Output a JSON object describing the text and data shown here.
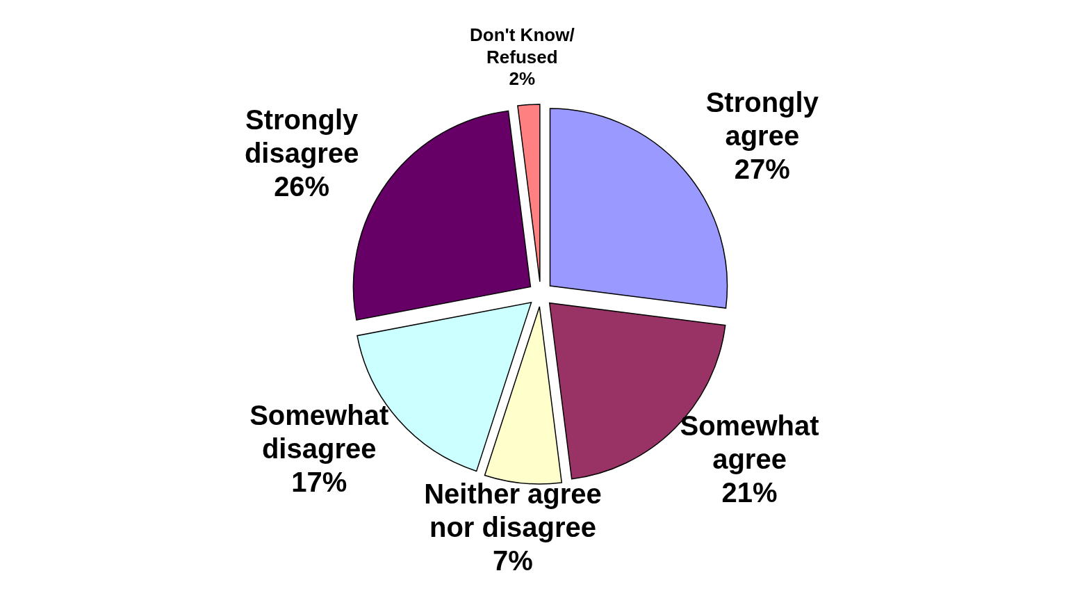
{
  "chart_data": {
    "type": "pie",
    "categories": [
      "Strongly agree",
      "Somewhat agree",
      "Neither agree nor disagree",
      "Somewhat disagree",
      "Strongly disagree",
      "Don't Know/Refused"
    ],
    "values": [
      27,
      21,
      7,
      17,
      26,
      2
    ],
    "colors": [
      "#9999ff",
      "#993366",
      "#ffffcc",
      "#ccffff",
      "#660066",
      "#ff8080"
    ],
    "value_labels": [
      "27%",
      "21%",
      "7%",
      "17%",
      "26%",
      "2%"
    ],
    "legend": false
  }
}
